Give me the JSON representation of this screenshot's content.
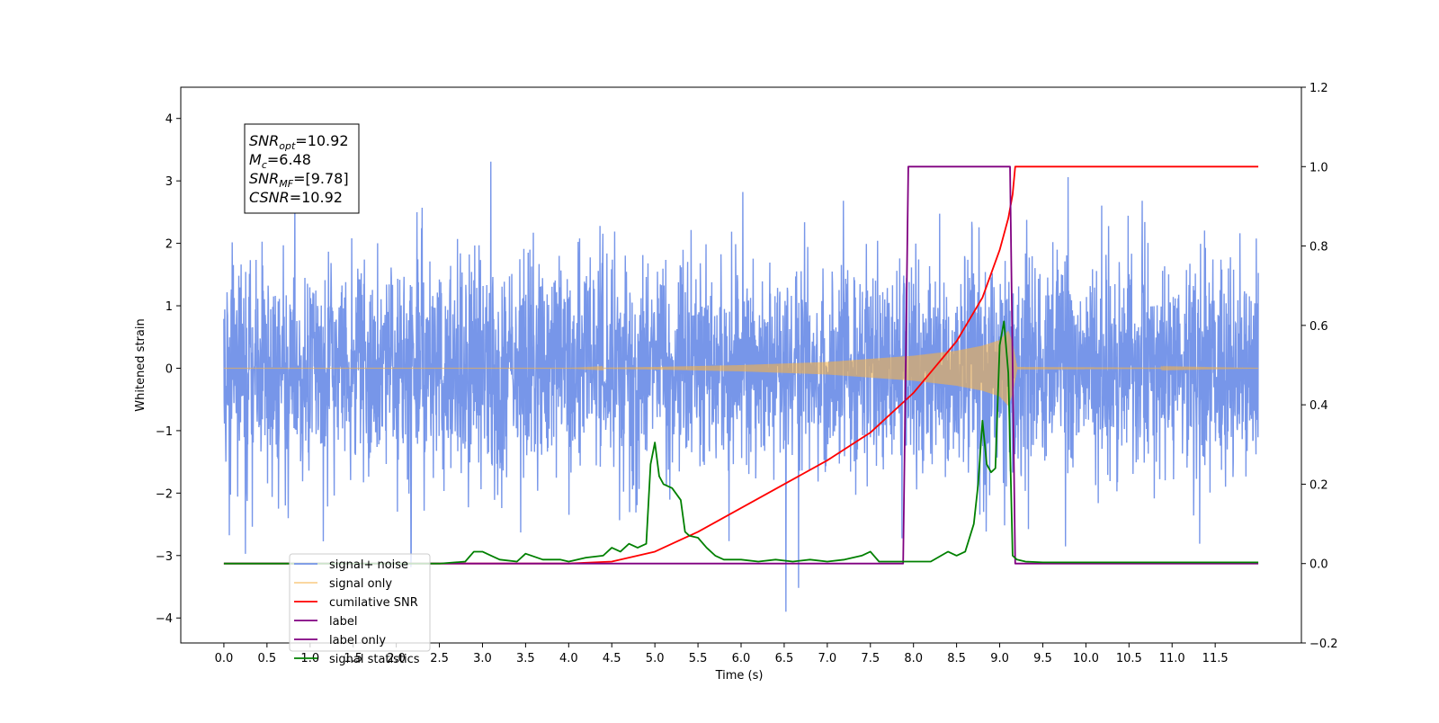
{
  "chart_data": {
    "type": "line",
    "title": "",
    "xlabel": "Time (s)",
    "ylabel_left": "Whitened strain",
    "ylabel_right": "",
    "xlim": [
      -0.5,
      12.5
    ],
    "ylim_left": [
      -4.4,
      4.5
    ],
    "ylim_right": [
      -0.2,
      1.2
    ],
    "x_ticks": [
      0.0,
      0.5,
      1.0,
      1.5,
      2.0,
      2.5,
      3.0,
      3.5,
      4.0,
      4.5,
      5.0,
      5.5,
      6.0,
      6.5,
      7.0,
      7.5,
      8.0,
      8.5,
      9.0,
      9.5,
      10.0,
      10.5,
      11.0,
      11.5
    ],
    "x_tick_labels": [
      "0.0",
      "0.5",
      "1.0",
      "1.5",
      "2.0",
      "2.5",
      "3.0",
      "3.5",
      "4.0",
      "4.5",
      "5.0",
      "5.5",
      "6.0",
      "6.5",
      "7.0",
      "7.5",
      "8.0",
      "8.5",
      "9.0",
      "9.5",
      "10.0",
      "10.5",
      "11.0",
      "11.5"
    ],
    "y_left_ticks": [
      -4,
      -3,
      -2,
      -1,
      0,
      1,
      2,
      3,
      4
    ],
    "y_left_tick_labels": [
      "−4",
      "−3",
      "−2",
      "−1",
      "0",
      "1",
      "2",
      "3",
      "4"
    ],
    "y_right_ticks": [
      -0.2,
      0.0,
      0.2,
      0.4,
      0.6,
      0.8,
      1.0,
      1.2
    ],
    "y_right_tick_labels": [
      "−0.2",
      "0.0",
      "0.2",
      "0.4",
      "0.6",
      "0.8",
      "1.0",
      "1.2"
    ],
    "grid": false,
    "legend_position": "lower-left",
    "annotation": {
      "lines": [
        {
          "main": "SNR",
          "sub": "opt",
          "value": "=10.92"
        },
        {
          "main": "M",
          "sub": "c",
          "value": "=6.48"
        },
        {
          "main": "SNR",
          "sub": "MF",
          "value": "=[9.78]"
        },
        {
          "main": "CSNR",
          "sub": "",
          "value": "=10.92"
        }
      ]
    },
    "series": [
      {
        "name": "signal+ noise",
        "axis": "left",
        "color": "#7090e8",
        "style": "noise",
        "sigma": 0.85,
        "x_range": [
          0.0,
          12.0
        ]
      },
      {
        "name": "signal only",
        "axis": "left",
        "color": "#f5b34a",
        "style": "chirp",
        "envelope": [
          [
            0.0,
            0.0
          ],
          [
            4.0,
            0.0
          ],
          [
            5.0,
            0.02
          ],
          [
            6.0,
            0.05
          ],
          [
            7.0,
            0.1
          ],
          [
            8.0,
            0.2
          ],
          [
            8.5,
            0.28
          ],
          [
            8.8,
            0.36
          ],
          [
            9.0,
            0.45
          ],
          [
            9.1,
            0.6
          ],
          [
            9.15,
            0.4
          ],
          [
            9.2,
            0.02
          ],
          [
            12.0,
            0.0
          ]
        ]
      },
      {
        "name": "cumilative SNR",
        "axis": "right",
        "color": "#ff0000",
        "x": [
          0.0,
          4.0,
          4.5,
          5.0,
          5.5,
          6.0,
          6.5,
          7.0,
          7.5,
          8.0,
          8.5,
          8.8,
          9.0,
          9.1,
          9.15,
          9.18,
          12.0
        ],
        "y": [
          0.0,
          0.0,
          0.005,
          0.03,
          0.08,
          0.14,
          0.2,
          0.26,
          0.33,
          0.43,
          0.56,
          0.67,
          0.79,
          0.87,
          0.93,
          1.0,
          1.0
        ]
      },
      {
        "name": "label",
        "axis": "right",
        "color": "#800080",
        "x": [
          0.0,
          7.88,
          7.94,
          9.12,
          9.18,
          12.0
        ],
        "y": [
          0.0,
          0.0,
          1.0,
          1.0,
          0.0,
          0.0
        ]
      },
      {
        "name": "label only",
        "axis": "right",
        "color": "#800080",
        "hidden": true,
        "x": [],
        "y": []
      },
      {
        "name": "signal statistics",
        "axis": "right",
        "color": "#008000",
        "x": [
          0.0,
          2.5,
          2.8,
          2.9,
          3.0,
          3.1,
          3.2,
          3.4,
          3.5,
          3.7,
          3.9,
          4.0,
          4.2,
          4.4,
          4.5,
          4.6,
          4.7,
          4.8,
          4.9,
          4.95,
          5.0,
          5.05,
          5.1,
          5.2,
          5.3,
          5.35,
          5.4,
          5.5,
          5.6,
          5.7,
          5.8,
          6.0,
          6.2,
          6.4,
          6.6,
          6.8,
          7.0,
          7.2,
          7.4,
          7.5,
          7.6,
          7.8,
          8.0,
          8.2,
          8.4,
          8.5,
          8.6,
          8.7,
          8.75,
          8.8,
          8.85,
          8.9,
          8.95,
          9.0,
          9.05,
          9.1,
          9.15,
          9.2,
          9.3,
          9.5,
          10.0,
          12.0
        ],
        "y": [
          0.0,
          0.0,
          0.005,
          0.03,
          0.03,
          0.02,
          0.01,
          0.005,
          0.025,
          0.01,
          0.01,
          0.005,
          0.015,
          0.02,
          0.04,
          0.03,
          0.05,
          0.04,
          0.05,
          0.25,
          0.305,
          0.22,
          0.2,
          0.19,
          0.16,
          0.08,
          0.07,
          0.065,
          0.04,
          0.02,
          0.01,
          0.01,
          0.005,
          0.01,
          0.005,
          0.01,
          0.005,
          0.01,
          0.02,
          0.03,
          0.005,
          0.005,
          0.005,
          0.005,
          0.03,
          0.02,
          0.03,
          0.1,
          0.2,
          0.36,
          0.25,
          0.23,
          0.24,
          0.55,
          0.61,
          0.48,
          0.02,
          0.01,
          0.005,
          0.003,
          0.003,
          0.003
        ]
      }
    ]
  }
}
